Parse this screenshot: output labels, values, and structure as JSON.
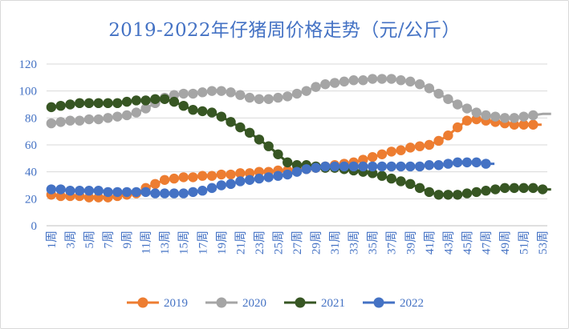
{
  "chart_data": {
    "type": "line",
    "title": "2019-2022年仔猪周价格走势（元/公斤）",
    "ylim": [
      0,
      120
    ],
    "yticks": [
      0,
      20,
      40,
      60,
      80,
      100,
      120
    ],
    "categories": [
      "1周",
      "2周",
      "3周",
      "4周",
      "5周",
      "6周",
      "7周",
      "8周",
      "9周",
      "10周",
      "11周",
      "12周",
      "13周",
      "14周",
      "15周",
      "16周",
      "17周",
      "18周",
      "19周",
      "20周",
      "21周",
      "22周",
      "23周",
      "24周",
      "25周",
      "26周",
      "27周",
      "28周",
      "29周",
      "30周",
      "31周",
      "32周",
      "33周",
      "34周",
      "35周",
      "36周",
      "37周",
      "38周",
      "39周",
      "40周",
      "41周",
      "42周",
      "43周",
      "44周",
      "45周",
      "46周",
      "47周",
      "48周",
      "49周",
      "50周",
      "51周",
      "52周",
      "53周"
    ],
    "x_tick_labels": [
      "1周",
      "3周",
      "5周",
      "7周",
      "9周",
      "11周",
      "13周",
      "15周",
      "17周",
      "19周",
      "21周",
      "23周",
      "25周",
      "27周",
      "29周",
      "31周",
      "33周",
      "35周",
      "37周",
      "39周",
      "41周",
      "43周",
      "45周",
      "47周",
      "49周",
      "51周",
      "53周"
    ],
    "grid": true,
    "legend_position": "bottom",
    "series": [
      {
        "name": "2019",
        "color": "#ed7d31",
        "values": [
          23,
          22,
          22,
          22,
          21,
          21,
          21,
          22,
          23,
          24,
          28,
          31,
          34,
          35,
          36,
          36,
          37,
          37,
          38,
          38,
          39,
          39,
          40,
          40,
          41,
          41,
          42,
          42,
          43,
          44,
          45,
          46,
          47,
          49,
          51,
          53,
          55,
          56,
          58,
          59,
          60,
          63,
          67,
          73,
          78,
          79,
          78,
          77,
          76,
          75,
          75,
          75,
          null
        ]
      },
      {
        "name": "2020",
        "color": "#a5a5a5",
        "values": [
          76,
          77,
          78,
          78,
          79,
          79,
          80,
          81,
          82,
          84,
          87,
          91,
          95,
          97,
          98,
          98,
          99,
          100,
          100,
          99,
          97,
          95,
          94,
          94,
          95,
          96,
          98,
          100,
          103,
          105,
          106,
          107,
          108,
          108,
          109,
          109,
          109,
          108,
          107,
          105,
          102,
          98,
          94,
          90,
          87,
          84,
          82,
          81,
          80,
          80,
          81,
          82,
          83
        ]
      },
      {
        "name": "2021",
        "color": "#375623",
        "values": [
          88,
          89,
          90,
          91,
          91,
          91,
          91,
          91,
          92,
          93,
          93,
          94,
          94,
          92,
          89,
          86,
          85,
          84,
          81,
          77,
          73,
          69,
          64,
          59,
          53,
          47,
          45,
          45,
          44,
          43,
          43,
          42,
          41,
          40,
          39,
          37,
          35,
          33,
          31,
          28,
          25,
          23,
          23,
          23,
          24,
          25,
          26,
          27,
          28,
          28,
          28,
          28,
          27
        ]
      },
      {
        "name": "2022",
        "color": "#4472c4",
        "values": [
          27,
          27,
          26,
          26,
          26,
          26,
          25,
          25,
          25,
          25,
          25,
          24,
          24,
          24,
          24,
          25,
          26,
          28,
          30,
          31,
          33,
          34,
          35,
          36,
          37,
          38,
          40,
          42,
          43,
          44,
          44,
          44,
          44,
          44,
          44,
          44,
          44,
          44,
          44,
          44,
          45,
          45,
          46,
          47,
          47,
          47,
          46,
          null,
          null,
          null,
          null,
          null,
          null
        ]
      }
    ]
  }
}
